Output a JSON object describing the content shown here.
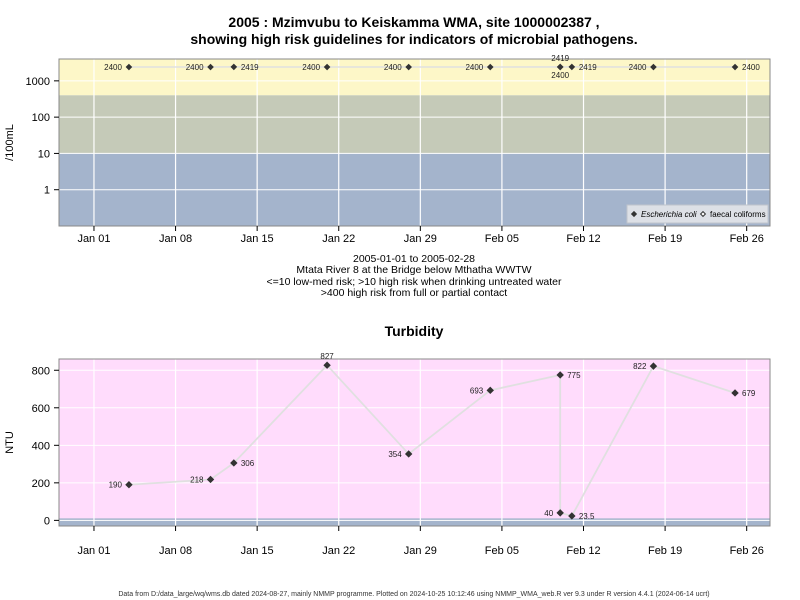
{
  "footer": "Data from D:/data_large/wq/wms.db dated 2024-08-27, mainly NMMP programme. Plotted on 2024-10-25 10:12:46 using NMMP_WMA_web.R ver 9.3 under R version 4.4.1 (2024-06-14 ucrt)",
  "colors": {
    "band_high": "#fdf7c8",
    "band_mid": "#c5cab8",
    "band_low": "#a4b4cc",
    "turb_bg": "#ffdcfc",
    "turb_base": "#a4b4cc",
    "marker": "#333333",
    "line": "#e0e0e0",
    "grid": "#ffffff"
  },
  "chart_data": [
    {
      "type": "scatter",
      "title_line1": "2005 : Mzimvubu to Keiskamma WMA, site 1000002387 ,",
      "title_line2": "showing high risk guidelines for indicators of microbial pathogens.",
      "ylabel": "/100mL",
      "yscale": "log",
      "ylim": [
        0.1,
        4000
      ],
      "yticks": [
        "1",
        "10",
        "100",
        "1000"
      ],
      "xticks": [
        "Jan 01",
        "Jan 08",
        "Jan 15",
        "Jan 22",
        "Jan 29",
        "Feb 05",
        "Feb 12",
        "Feb 19",
        "Feb 26"
      ],
      "xlim": [
        "2004-12-29",
        "2005-02-28"
      ],
      "bands": [
        {
          "from": 400,
          "to": 4000,
          "color": "band_high"
        },
        {
          "from": 10,
          "to": 400,
          "color": "band_mid"
        },
        {
          "from": 0.1,
          "to": 10,
          "color": "band_low"
        }
      ],
      "caption": [
        "2005-01-01 to 2005-02-28",
        "Mtata River 8 at the Bridge below Mthatha WWTW",
        "<=10 low-med risk; >10 high risk when drinking untreated water",
        ">400 high risk from full or partial contact"
      ],
      "legend": {
        "placement": "bottom-right",
        "entries": [
          {
            "marker": "filled-diamond",
            "label": "Escherichia coli",
            "italic": true
          },
          {
            "marker": "open-diamond",
            "label": "faecal coliforms",
            "italic": false
          }
        ]
      },
      "series": [
        {
          "name": "Escherichia coli",
          "marker": "filled-diamond",
          "points": [
            {
              "x": "2005-01-04",
              "y": 2400,
              "label": "2400",
              "label_pos": "left"
            },
            {
              "x": "2005-01-11",
              "y": 2400,
              "label": "2400",
              "label_pos": "left"
            },
            {
              "x": "2005-01-13",
              "y": 2419,
              "label": "2419",
              "label_pos": "right"
            },
            {
              "x": "2005-01-21",
              "y": 2400,
              "label": "2400",
              "label_pos": "left"
            },
            {
              "x": "2005-01-28",
              "y": 2400,
              "label": "2400",
              "label_pos": "left"
            },
            {
              "x": "2005-02-04",
              "y": 2400,
              "label": "2400",
              "label_pos": "left"
            },
            {
              "x": "2005-02-10",
              "y": 2419,
              "label": "2419",
              "label_pos": "above"
            },
            {
              "x": "2005-02-10",
              "y": 2400,
              "label": "2400",
              "label_pos": "below"
            },
            {
              "x": "2005-02-11",
              "y": 2419,
              "label": "2419",
              "label_pos": "right"
            },
            {
              "x": "2005-02-18",
              "y": 2400,
              "label": "2400",
              "label_pos": "left"
            },
            {
              "x": "2005-02-25",
              "y": 2400,
              "label": "2400",
              "label_pos": "right"
            }
          ]
        }
      ]
    },
    {
      "type": "line",
      "title": "Turbidity",
      "ylabel": "NTU",
      "ylim": [
        -30,
        860
      ],
      "yticks": [
        0,
        200,
        400,
        600,
        800
      ],
      "xticks": [
        "Jan 01",
        "Jan 08",
        "Jan 15",
        "Jan 22",
        "Jan 29",
        "Feb 05",
        "Feb 12",
        "Feb 19",
        "Feb 26"
      ],
      "xlim": [
        "2004-12-29",
        "2005-02-28"
      ],
      "points": [
        {
          "x": "2005-01-04",
          "y": 190,
          "label": "190",
          "label_pos": "left"
        },
        {
          "x": "2005-01-11",
          "y": 218,
          "label": "218",
          "label_pos": "left"
        },
        {
          "x": "2005-01-13",
          "y": 306,
          "label": "306",
          "label_pos": "right"
        },
        {
          "x": "2005-01-21",
          "y": 827,
          "label": "827",
          "label_pos": "above"
        },
        {
          "x": "2005-01-28",
          "y": 354,
          "label": "354",
          "label_pos": "left"
        },
        {
          "x": "2005-02-04",
          "y": 693,
          "label": "693",
          "label_pos": "left"
        },
        {
          "x": "2005-02-10",
          "y": 775,
          "label": "775",
          "label_pos": "right"
        },
        {
          "x": "2005-02-10",
          "y": 40,
          "label": "40",
          "label_pos": "left"
        },
        {
          "x": "2005-02-11",
          "y": 23.5,
          "label": "23.5",
          "label_pos": "right"
        },
        {
          "x": "2005-02-18",
          "y": 822,
          "label": "822",
          "label_pos": "left"
        },
        {
          "x": "2005-02-25",
          "y": 679,
          "label": "679",
          "label_pos": "right"
        }
      ]
    }
  ]
}
